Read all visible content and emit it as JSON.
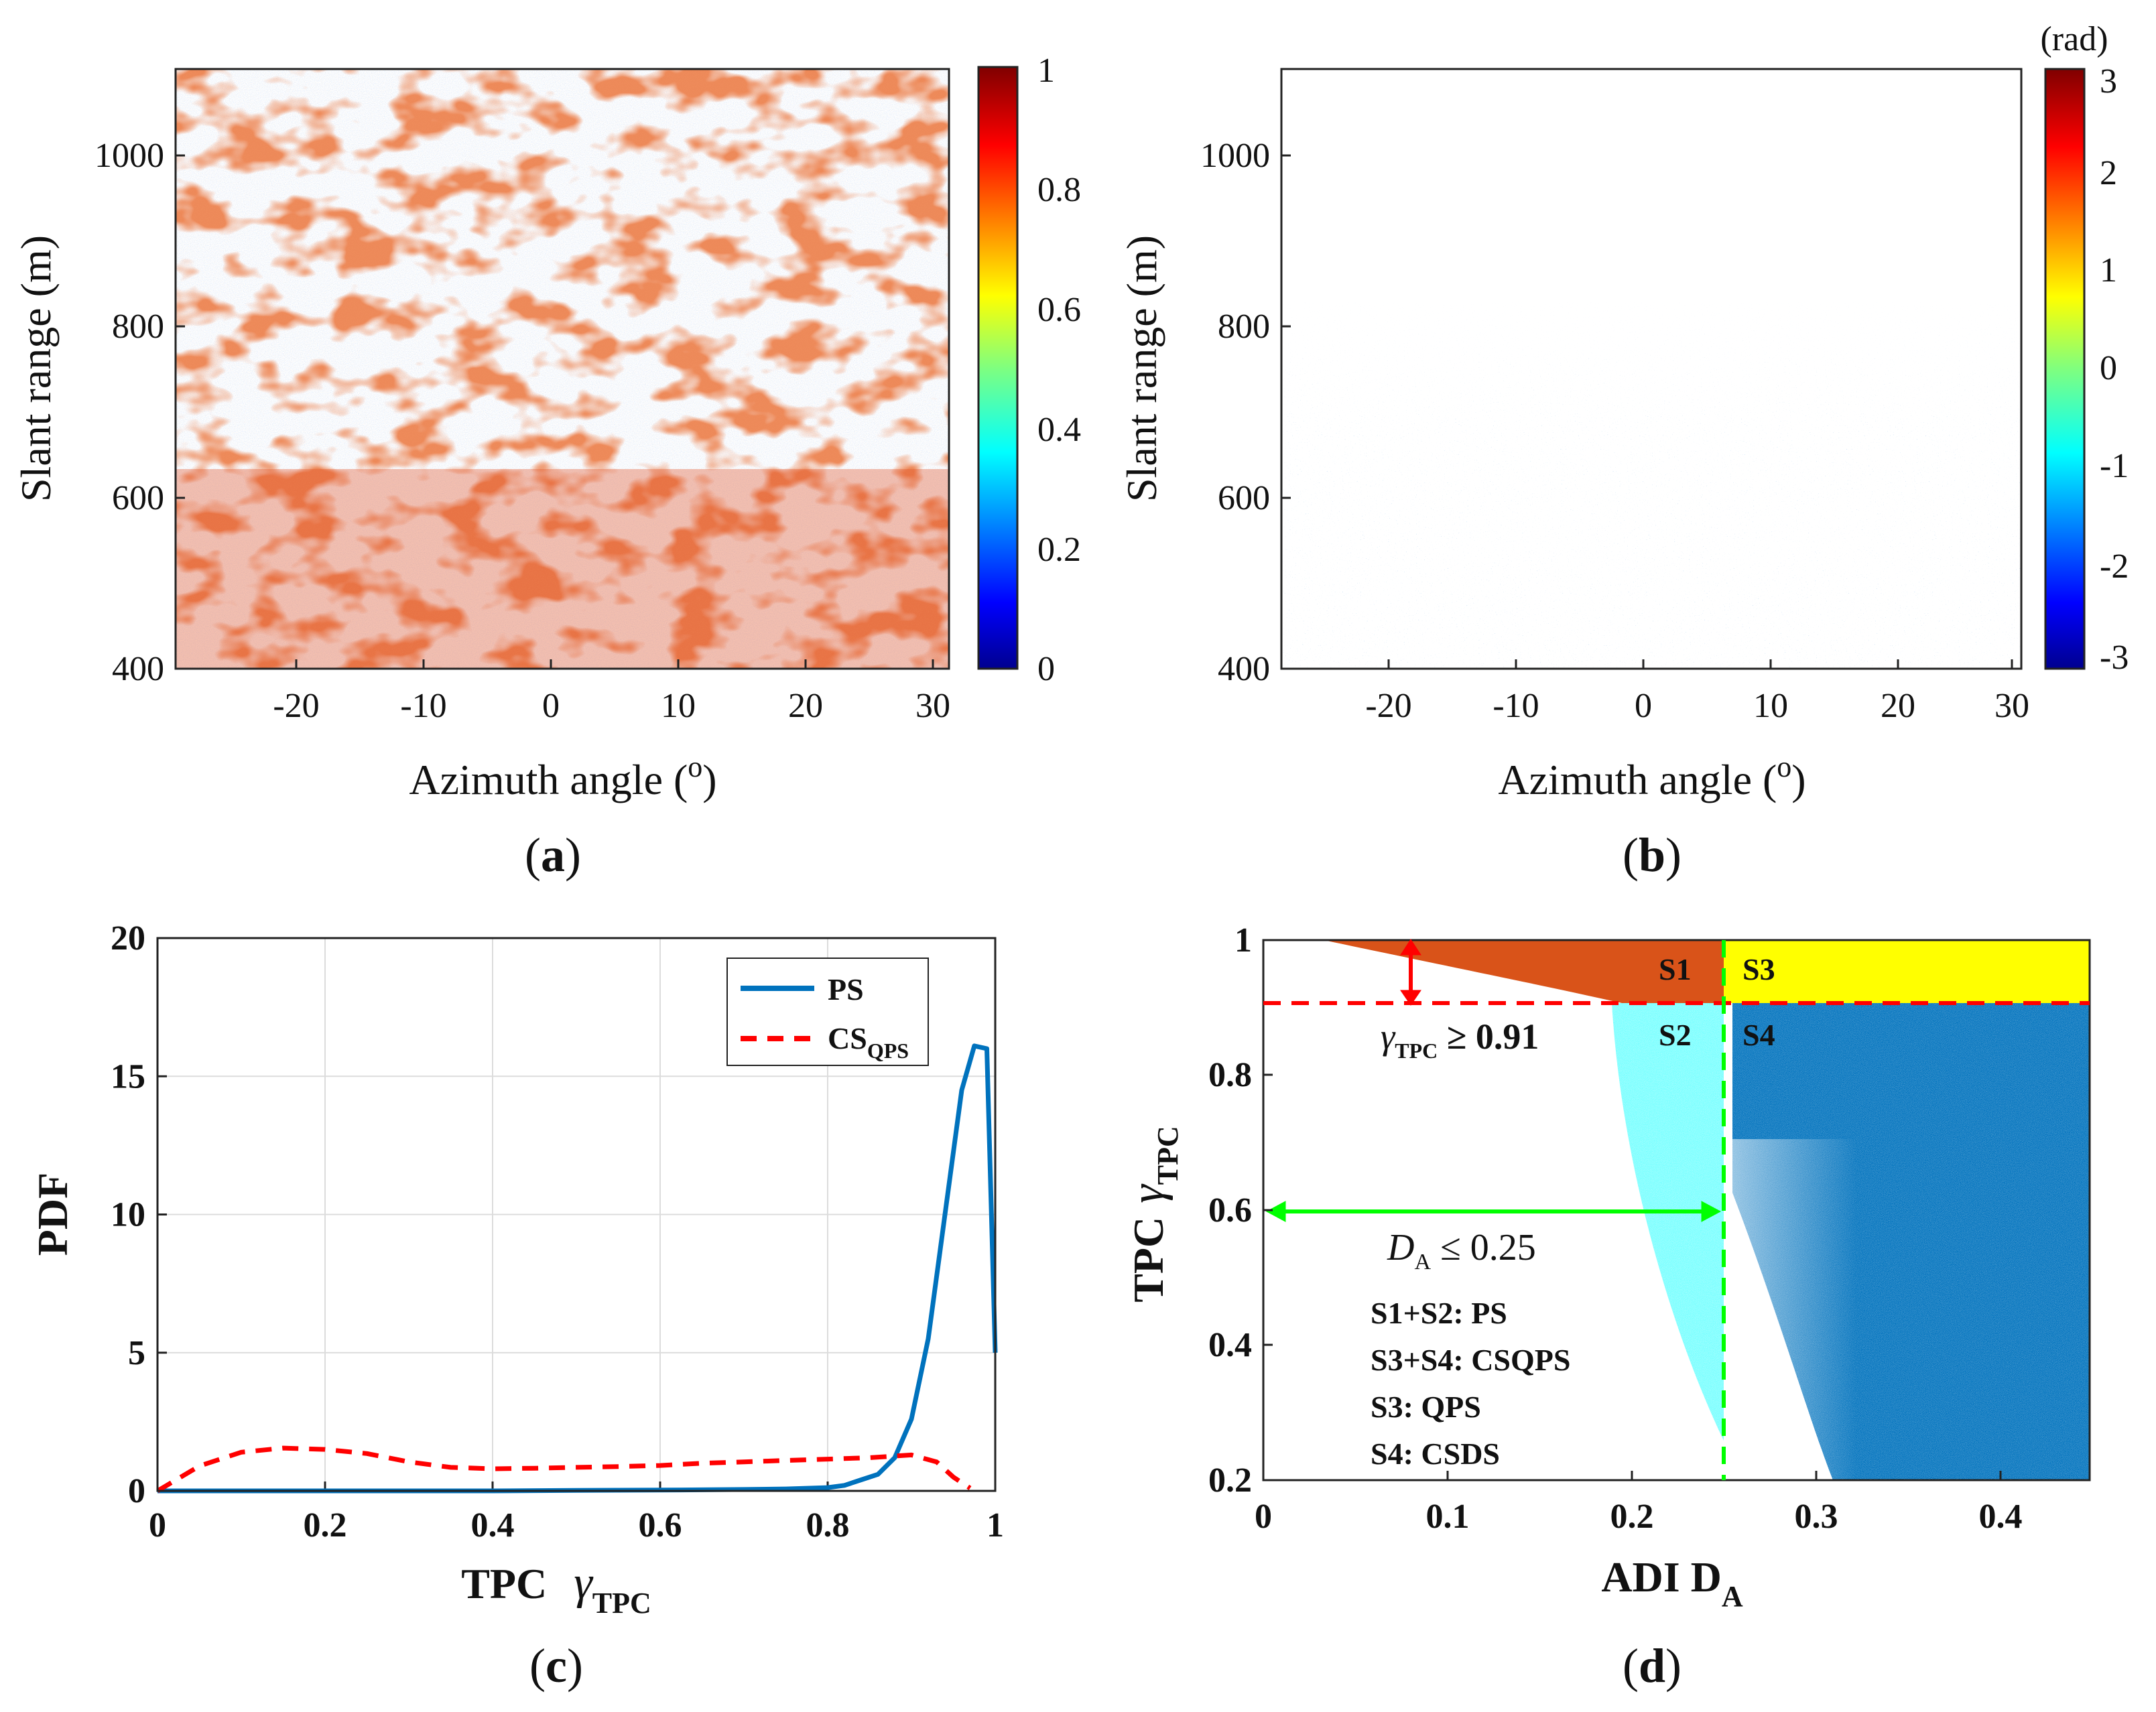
{
  "panels": {
    "a": {
      "label_prefix": "(",
      "label_letter": "a",
      "label_suffix": ")",
      "ylabel": "Slant range (m)",
      "xlabel": "Azimuth angle (",
      "xlabel_sup": "o",
      "xlabel_end": ")",
      "xticks": [
        "-20",
        "-10",
        "0",
        "10",
        "20",
        "30"
      ],
      "yticks": [
        "400",
        "600",
        "800",
        "1000"
      ],
      "colorbar_ticks": [
        "0",
        "0.2",
        "0.4",
        "0.6",
        "0.8",
        "1"
      ]
    },
    "b": {
      "label_prefix": "(",
      "label_letter": "b",
      "label_suffix": ")",
      "ylabel": "Slant range (m)",
      "xlabel": "Azimuth angle (",
      "xlabel_sup": "o",
      "xlabel_end": ")",
      "xticks": [
        "-20",
        "-10",
        "0",
        "10",
        "20",
        "30"
      ],
      "yticks": [
        "400",
        "600",
        "800",
        "1000"
      ],
      "colorbar_unit": "(rad)",
      "colorbar_ticks": [
        "-3",
        "-2",
        "-1",
        "0",
        "1",
        "2",
        "3"
      ]
    },
    "c": {
      "label_prefix": "(",
      "label_letter": "c",
      "label_suffix": ")",
      "ylabel": "PDF",
      "xlabel_main": "TPC",
      "xlabel_gamma": "γ",
      "xlabel_sub": "TPC",
      "legend_ps": "PS",
      "legend_cs": "CS",
      "legend_cs_sub": "QPS"
    },
    "d": {
      "label_prefix": "(",
      "label_letter": "d",
      "label_suffix": ")",
      "ylabel_main": "TPC",
      "ylabel_gamma": "γ",
      "ylabel_sub": "TPC",
      "xlabel_main": "ADI D",
      "xlabel_sub": "A",
      "xticks": [
        "0",
        "0.1",
        "0.2",
        "0.3",
        "0.4"
      ],
      "yticks": [
        "0.2",
        "0.4",
        "0.6",
        "0.8",
        "1"
      ],
      "s1": "S1",
      "s2": "S2",
      "s3": "S3",
      "s4": "S4",
      "gamma_annotation_sym": "γ",
      "gamma_annotation_sub": "TPC",
      "gamma_annotation_val": " ≥ 0.91",
      "da_annotation_sym": "D",
      "da_annotation_sub": "A",
      "da_annotation_val": " ≤ 0.25",
      "note1": "S1+S2: PS",
      "note2": "S3+S4: CSQPS",
      "note3": "S3: QPS",
      "note4": "S4: CSDS"
    }
  },
  "colors": {
    "ps_line": "#0072bd",
    "cs_line": "#ff0000",
    "s1_fill": "#d95319",
    "s2_fill": "#00ffff",
    "s3_fill": "#ffff00",
    "s4_fill": "#0072bd",
    "da_line": "#00ff00",
    "gamma_line": "#ff0000"
  },
  "chart_data": {
    "type": "line",
    "title": "",
    "xlabel": "TPC γTPC",
    "ylabel": "PDF",
    "xlim": [
      0,
      1
    ],
    "ylim": [
      0,
      20
    ],
    "xticks": [
      0,
      0.2,
      0.4,
      0.6,
      0.8,
      1
    ],
    "yticks": [
      0,
      5,
      10,
      15,
      20
    ],
    "grid": true,
    "legend": "top-right",
    "series": [
      {
        "name": "PS",
        "x": [
          0,
          0.1,
          0.2,
          0.3,
          0.4,
          0.5,
          0.6,
          0.7,
          0.75,
          0.8,
          0.82,
          0.84,
          0.86,
          0.88,
          0.9,
          0.92,
          0.94,
          0.96,
          0.975,
          0.99,
          1.0
        ],
        "values": [
          0,
          0,
          0,
          0,
          0,
          0.02,
          0.03,
          0.05,
          0.07,
          0.12,
          0.2,
          0.4,
          0.6,
          1.2,
          2.6,
          5.5,
          10,
          14.5,
          16.1,
          16,
          5
        ]
      },
      {
        "name": "CSQPS",
        "x": [
          0,
          0.05,
          0.1,
          0.15,
          0.2,
          0.25,
          0.3,
          0.35,
          0.4,
          0.45,
          0.5,
          0.55,
          0.6,
          0.65,
          0.7,
          0.75,
          0.8,
          0.85,
          0.9,
          0.93,
          0.95,
          0.97
        ],
        "values": [
          0,
          0.9,
          1.4,
          1.55,
          1.5,
          1.35,
          1.05,
          0.85,
          0.8,
          0.82,
          0.85,
          0.88,
          0.92,
          1.0,
          1.05,
          1.1,
          1.15,
          1.2,
          1.3,
          1.05,
          0.5,
          0.1
        ]
      }
    ]
  }
}
